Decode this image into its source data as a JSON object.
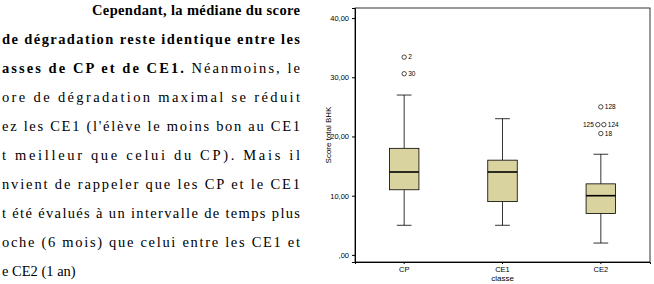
{
  "paragraph": {
    "lines": [
      [
        {
          "text": "Cependant, la médiane du score",
          "bold": true
        }
      ],
      [
        {
          "text": "de dégradation reste identique entre les",
          "bold": true
        }
      ],
      [
        {
          "text": "asses de CP et de CE1.",
          "bold": true
        },
        {
          "text": " Néanmoins, le",
          "bold": false
        }
      ],
      [
        {
          "text": "ore de dégradation maximal se réduit",
          "bold": false
        }
      ],
      [
        {
          "text": "ez les CE1 (l'élève le moins bon au CE1",
          "bold": false
        }
      ],
      [
        {
          "text": "t meilleur que celui du CP). Mais il",
          "bold": false
        }
      ],
      [
        {
          "text": "nvient de rappeler que les CP et le CE1",
          "bold": false
        }
      ],
      [
        {
          "text": "t été évalués à un intervalle de temps plus",
          "bold": false
        }
      ],
      [
        {
          "text": "oche (6 mois) que celui entre les CE1 et",
          "bold": false
        }
      ],
      [
        {
          "text": "e CE2 (1 an)",
          "bold": false
        }
      ]
    ]
  },
  "chart_data": {
    "type": "box",
    "x_label": "classe",
    "y_label": "Score total BHK",
    "categories": [
      "CP",
      "CE1",
      "CE2"
    ],
    "color": "#d9d3a0",
    "boxes": [
      {
        "min": 5,
        "q1": 11,
        "median": 14,
        "q3": 18,
        "max": 27,
        "outliers": [
          33.4,
          30.6
        ],
        "outlier_labels": [
          "2",
          "30"
        ]
      },
      {
        "min": 5,
        "q1": 9,
        "median": 14,
        "q3": 16,
        "max": 23,
        "outliers": [],
        "outlier_labels": []
      },
      {
        "min": 2,
        "q1": 7,
        "median": 10,
        "q3": 12,
        "max": 17,
        "outliers": [
          25,
          22,
          22,
          20.5
        ],
        "outlier_labels": [
          "128",
          "125",
          "124",
          "18"
        ]
      }
    ],
    "ylim": [
      -1.2,
      41.7
    ],
    "yticks": [
      {
        "value": 0,
        "label": ",00"
      },
      {
        "value": 10,
        "label": "10,00"
      },
      {
        "value": 20,
        "label": "20,00"
      },
      {
        "value": 30,
        "label": "30,00"
      },
      {
        "value": 40,
        "label": "40,00"
      }
    ]
  }
}
